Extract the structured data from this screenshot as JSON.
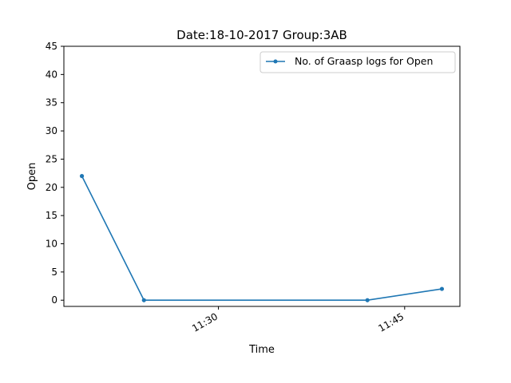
{
  "chart_data": {
    "type": "line",
    "title": "Date:18-10-2017  Group:3AB",
    "xlabel": "Time",
    "ylabel": "Open",
    "x": [
      "11:19",
      "11:24",
      "11:42",
      "11:48"
    ],
    "x_ticks": [
      "11:30",
      "11:45"
    ],
    "ylim": [
      -1.1,
      45
    ],
    "y_ticks": [
      0,
      5,
      10,
      15,
      20,
      25,
      30,
      35,
      40,
      45
    ],
    "series": [
      {
        "name": "No. of Graasp logs for Open",
        "values": [
          22,
          0,
          0,
          2
        ],
        "color": "#1f77b4"
      }
    ],
    "legend": "top-right",
    "grid": false
  }
}
